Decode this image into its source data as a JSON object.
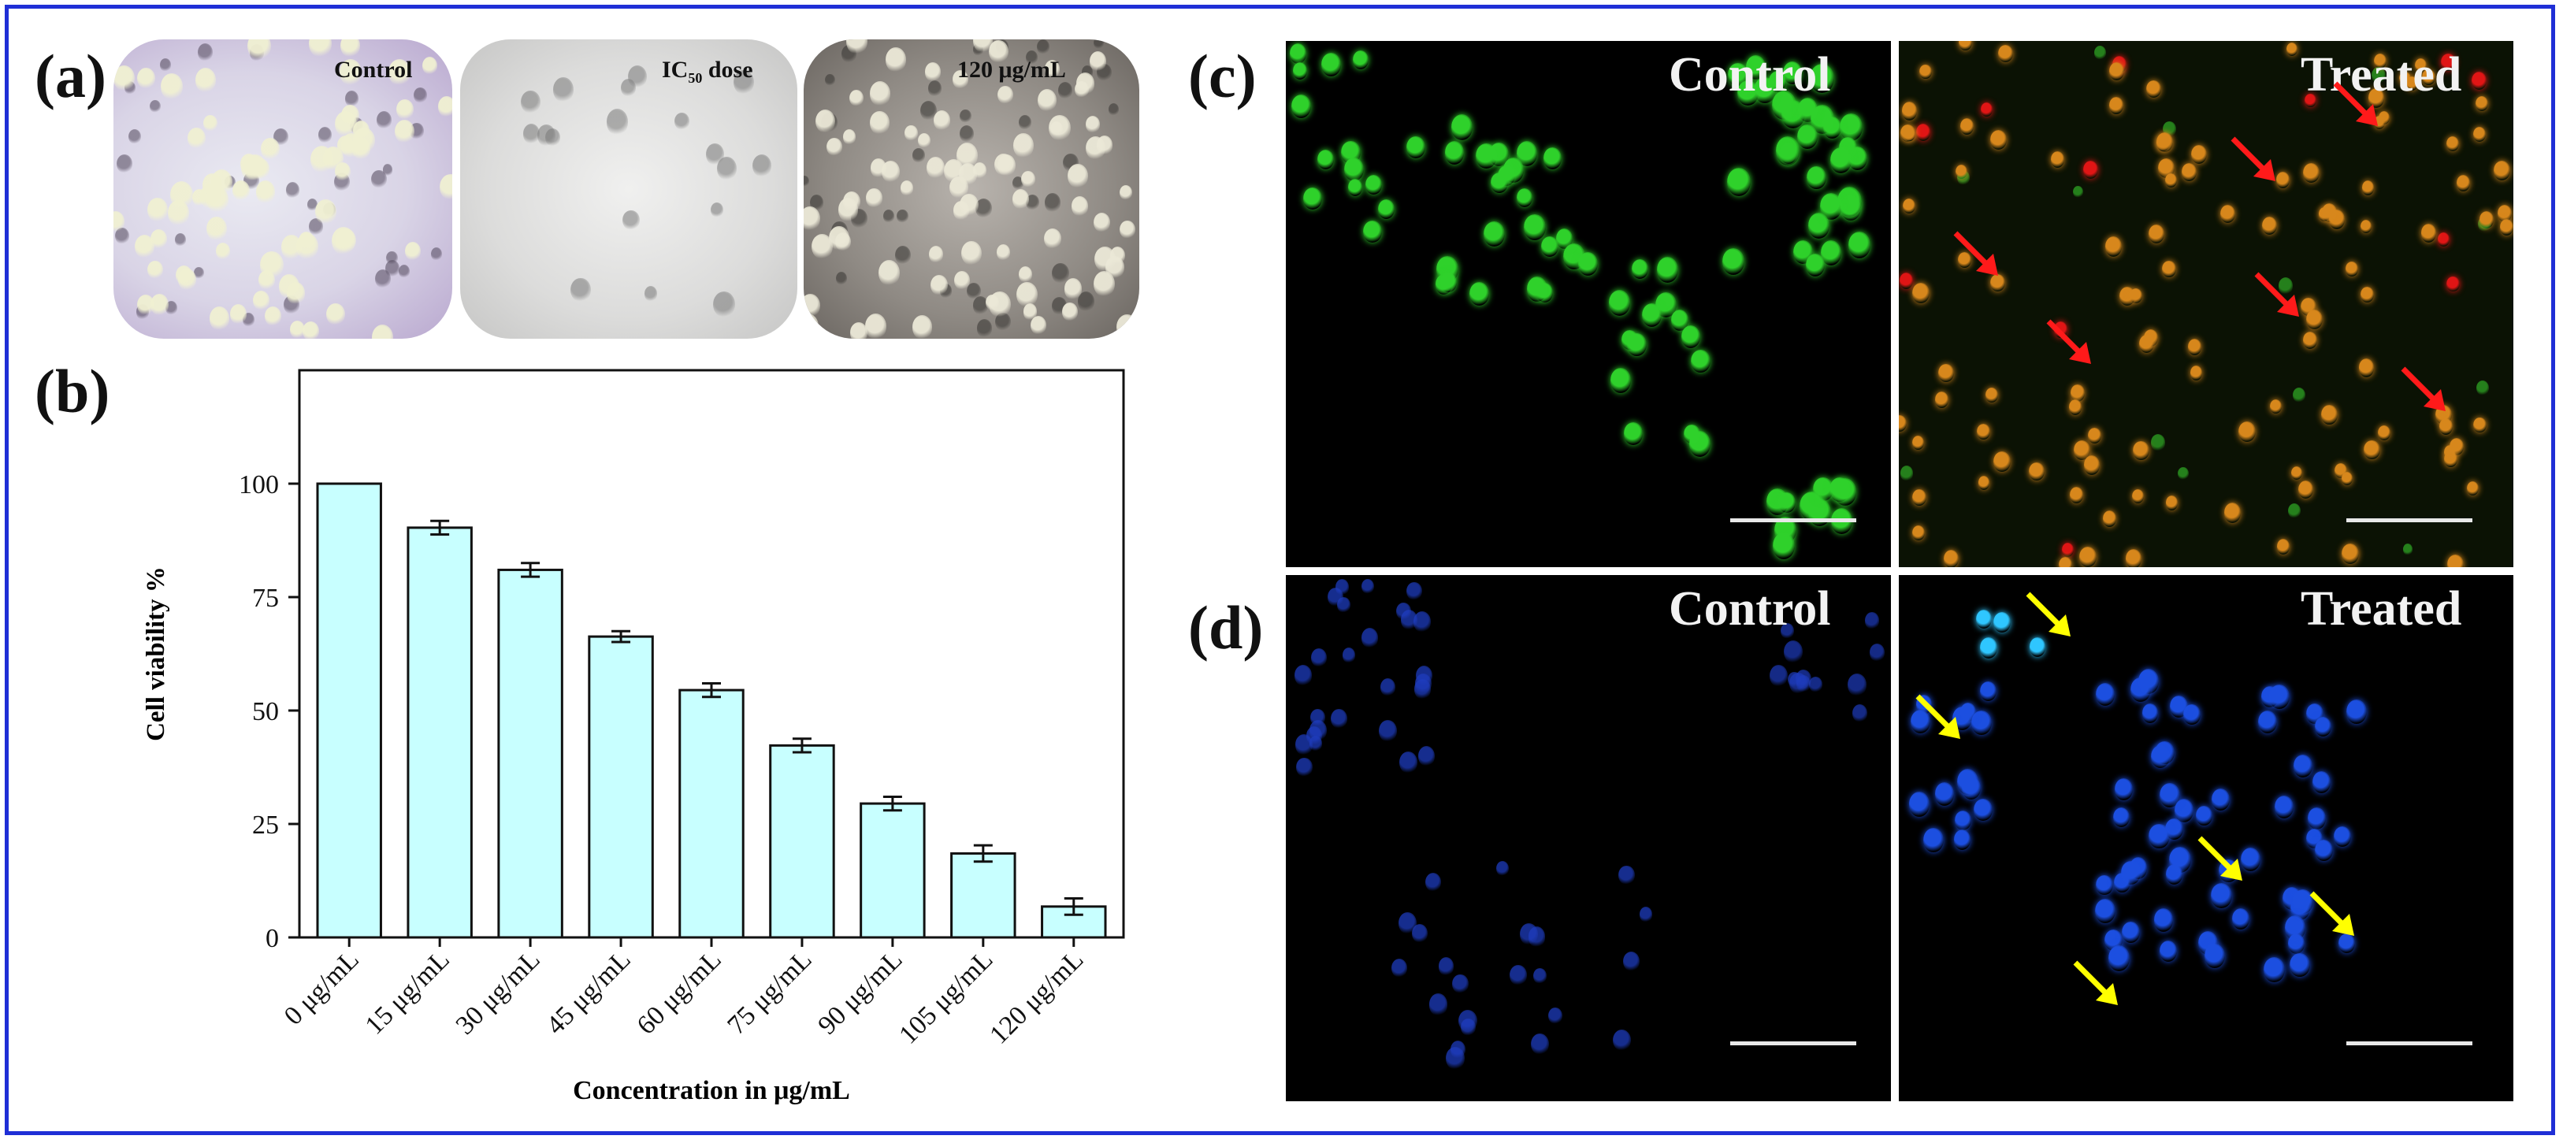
{
  "panels": {
    "a": {
      "label": "(a)",
      "images": [
        {
          "caption": "Control",
          "kind": "brightfield-dense"
        },
        {
          "caption_main": "IC",
          "caption_sub": "50",
          "caption_rest": " dose",
          "kind": "brightfield-sparse"
        },
        {
          "caption": "120 μg/mL",
          "kind": "phase-contrast"
        }
      ]
    },
    "b": {
      "label": "(b)"
    },
    "c": {
      "label": "(c)",
      "left_caption": "Control",
      "right_caption": "Treated",
      "stain": "green-orange fluorescence"
    },
    "d": {
      "label": "(d)",
      "left_caption": "Control",
      "right_caption": "Treated",
      "stain": "blue nuclear fluorescence"
    }
  },
  "colors": {
    "frame": "#1f2fd6",
    "bar_fill": "#c8ffff",
    "bar_stroke": "#111111",
    "green_cell": "#2fd12b",
    "orange_cell": "#d7871c",
    "red_cell": "#e01515",
    "blue_cell": "#1c4fe0",
    "cyan_cell": "#2fc6ff",
    "red_arrow": "#ff1a1a",
    "yellow_arrow": "#ffff00"
  },
  "chart_data": {
    "type": "bar",
    "categories": [
      "0 μg/mL",
      "15 μg/mL",
      "30 μg/mL",
      "45 μg/mL",
      "60 μg/mL",
      "75 μg/mL",
      "90 μg/mL",
      "105 μg/mL",
      "120 μg/mL"
    ],
    "values": [
      100,
      90.3,
      81,
      66.3,
      54.5,
      42.3,
      29.5,
      18.5,
      6.8
    ],
    "errors": [
      0,
      1.5,
      1.5,
      1.2,
      1.5,
      1.5,
      1.5,
      1.8,
      1.8
    ],
    "xlabel": "Concentration in μg/mL",
    "ylabel": "Cell viability %",
    "ylim": [
      0,
      125
    ],
    "yticks": [
      0,
      25,
      50,
      75,
      100
    ],
    "grid": false,
    "legend": "none"
  }
}
